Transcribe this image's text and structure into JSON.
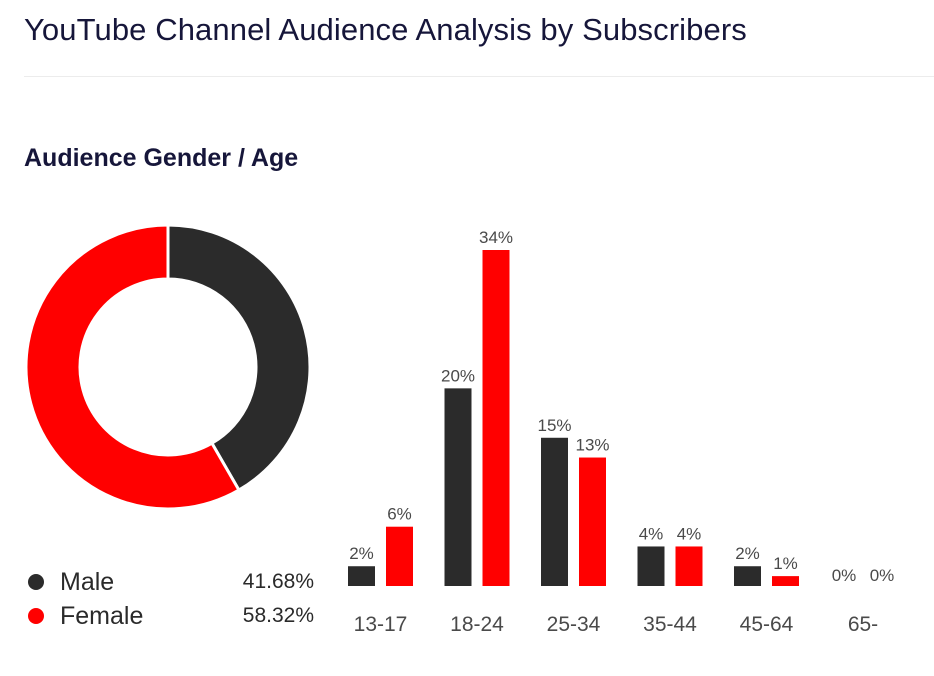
{
  "header": {
    "title": "YouTube Channel Audience Analysis by Subscribers"
  },
  "section": {
    "title": "Audience Gender / Age"
  },
  "colors": {
    "male": "#2b2b2b",
    "female": "#ff0000",
    "text": "#4a4a4a"
  },
  "chart_data": [
    {
      "type": "pie",
      "variant": "donut",
      "title": "Audience Gender",
      "labels": [
        "Male",
        "Female"
      ],
      "values": [
        41.68,
        58.32
      ],
      "value_labels": [
        "41.68%",
        "58.32%"
      ]
    },
    {
      "type": "bar",
      "title": "Audience Age",
      "categories": [
        "13-17",
        "18-24",
        "25-34",
        "35-44",
        "45-64",
        "65-"
      ],
      "series": [
        {
          "name": "Male",
          "values": [
            2,
            20,
            15,
            4,
            2,
            0
          ],
          "labels": [
            "2%",
            "20%",
            "15%",
            "4%",
            "2%",
            "0%"
          ]
        },
        {
          "name": "Female",
          "values": [
            6,
            34,
            13,
            4,
            1,
            0
          ],
          "labels": [
            "6%",
            "34%",
            "13%",
            "4%",
            "1%",
            "0%"
          ]
        }
      ],
      "xlabel": "",
      "ylabel": "",
      "ylim": [
        0,
        34
      ],
      "grid": false
    }
  ]
}
